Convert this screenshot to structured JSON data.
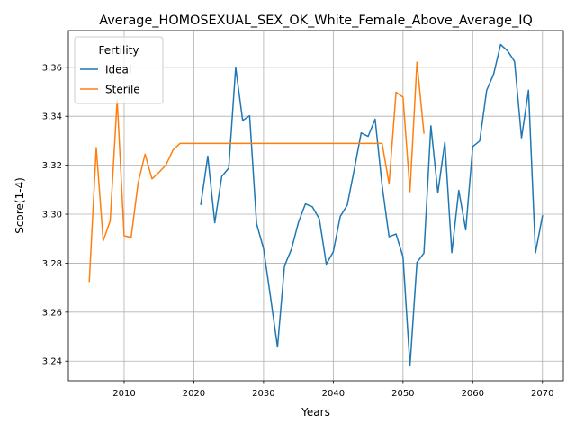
{
  "chart_data": {
    "type": "line",
    "title": "Average_HOMOSEXUAL_SEX_OK_White_Female_Above_Average_IQ",
    "xlabel": "Years",
    "ylabel": "Score(1-4)",
    "xlim": [
      2002,
      2073
    ],
    "ylim": [
      3.232,
      3.375
    ],
    "xticks": [
      2010,
      2020,
      2030,
      2040,
      2050,
      2060,
      2070
    ],
    "yticks": [
      3.24,
      3.26,
      3.28,
      3.3,
      3.32,
      3.34,
      3.36
    ],
    "ytick_labels": [
      "3.24",
      "3.26",
      "3.28",
      "3.30",
      "3.32",
      "3.34",
      "3.36"
    ],
    "grid": true,
    "legend": {
      "title": "Fertility",
      "placement": "upper-left"
    },
    "series": [
      {
        "name": "Ideal",
        "color": "#1f77b4",
        "x": [
          2021,
          2022,
          2023,
          2024,
          2025,
          2026,
          2027,
          2028,
          2029,
          2030,
          2031,
          2032,
          2033,
          2034,
          2035,
          2036,
          2037,
          2038,
          2039,
          2040,
          2041,
          2042,
          2043,
          2044,
          2045,
          2046,
          2047,
          2048,
          2049,
          2050,
          2051,
          2052,
          2053,
          2054,
          2055,
          2056,
          2057,
          2058,
          2059,
          2060,
          2061,
          2062,
          2063,
          2064,
          2065,
          2066,
          2067,
          2068,
          2069,
          2070
        ],
        "values": [
          3.304,
          3.3237,
          3.2965,
          3.3154,
          3.3188,
          3.3599,
          3.3383,
          3.3402,
          3.2961,
          3.2859,
          3.2661,
          3.2458,
          3.2789,
          3.2857,
          3.2966,
          3.3042,
          3.303,
          3.2981,
          3.2796,
          3.2846,
          3.2991,
          3.3037,
          3.3181,
          3.3332,
          3.3318,
          3.3388,
          3.3118,
          3.2908,
          3.2919,
          3.2826,
          3.2381,
          3.2803,
          3.2841,
          3.3361,
          3.3087,
          3.3294,
          3.2843,
          3.3097,
          3.2936,
          3.3276,
          3.3299,
          3.3506,
          3.3572,
          3.3693,
          3.3667,
          3.3624,
          3.3312,
          3.3506,
          3.2842,
          3.2993
        ]
      },
      {
        "name": "Sterile",
        "color": "#ff7f0e",
        "x": [
          2005,
          2006,
          2007,
          2008,
          2009,
          2010,
          2011,
          2012,
          2013,
          2014,
          2015,
          2016,
          2017,
          2018,
          2019,
          2020,
          2021,
          2022,
          2023,
          2024,
          2025,
          2026,
          2027,
          2028,
          2029,
          2030,
          2031,
          2032,
          2033,
          2034,
          2035,
          2036,
          2037,
          2038,
          2039,
          2040,
          2041,
          2042,
          2043,
          2044,
          2045,
          2046,
          2047,
          2048,
          2049,
          2050,
          2051,
          2052,
          2053
        ],
        "values": [
          3.2726,
          3.3272,
          3.2891,
          3.2973,
          3.3468,
          3.2912,
          3.2905,
          3.3126,
          3.3245,
          3.3144,
          3.3171,
          3.3201,
          3.3262,
          3.3289,
          3.3289,
          3.3289,
          3.3289,
          3.3289,
          3.3289,
          3.3289,
          3.3289,
          3.3289,
          3.3289,
          3.3289,
          3.3289,
          3.3289,
          3.3289,
          3.3289,
          3.3289,
          3.3289,
          3.3289,
          3.3289,
          3.3289,
          3.3289,
          3.3289,
          3.3289,
          3.3289,
          3.3289,
          3.3289,
          3.3289,
          3.3289,
          3.3289,
          3.3289,
          3.3124,
          3.3498,
          3.3478,
          3.3092,
          3.3621,
          3.3331
        ]
      }
    ]
  }
}
